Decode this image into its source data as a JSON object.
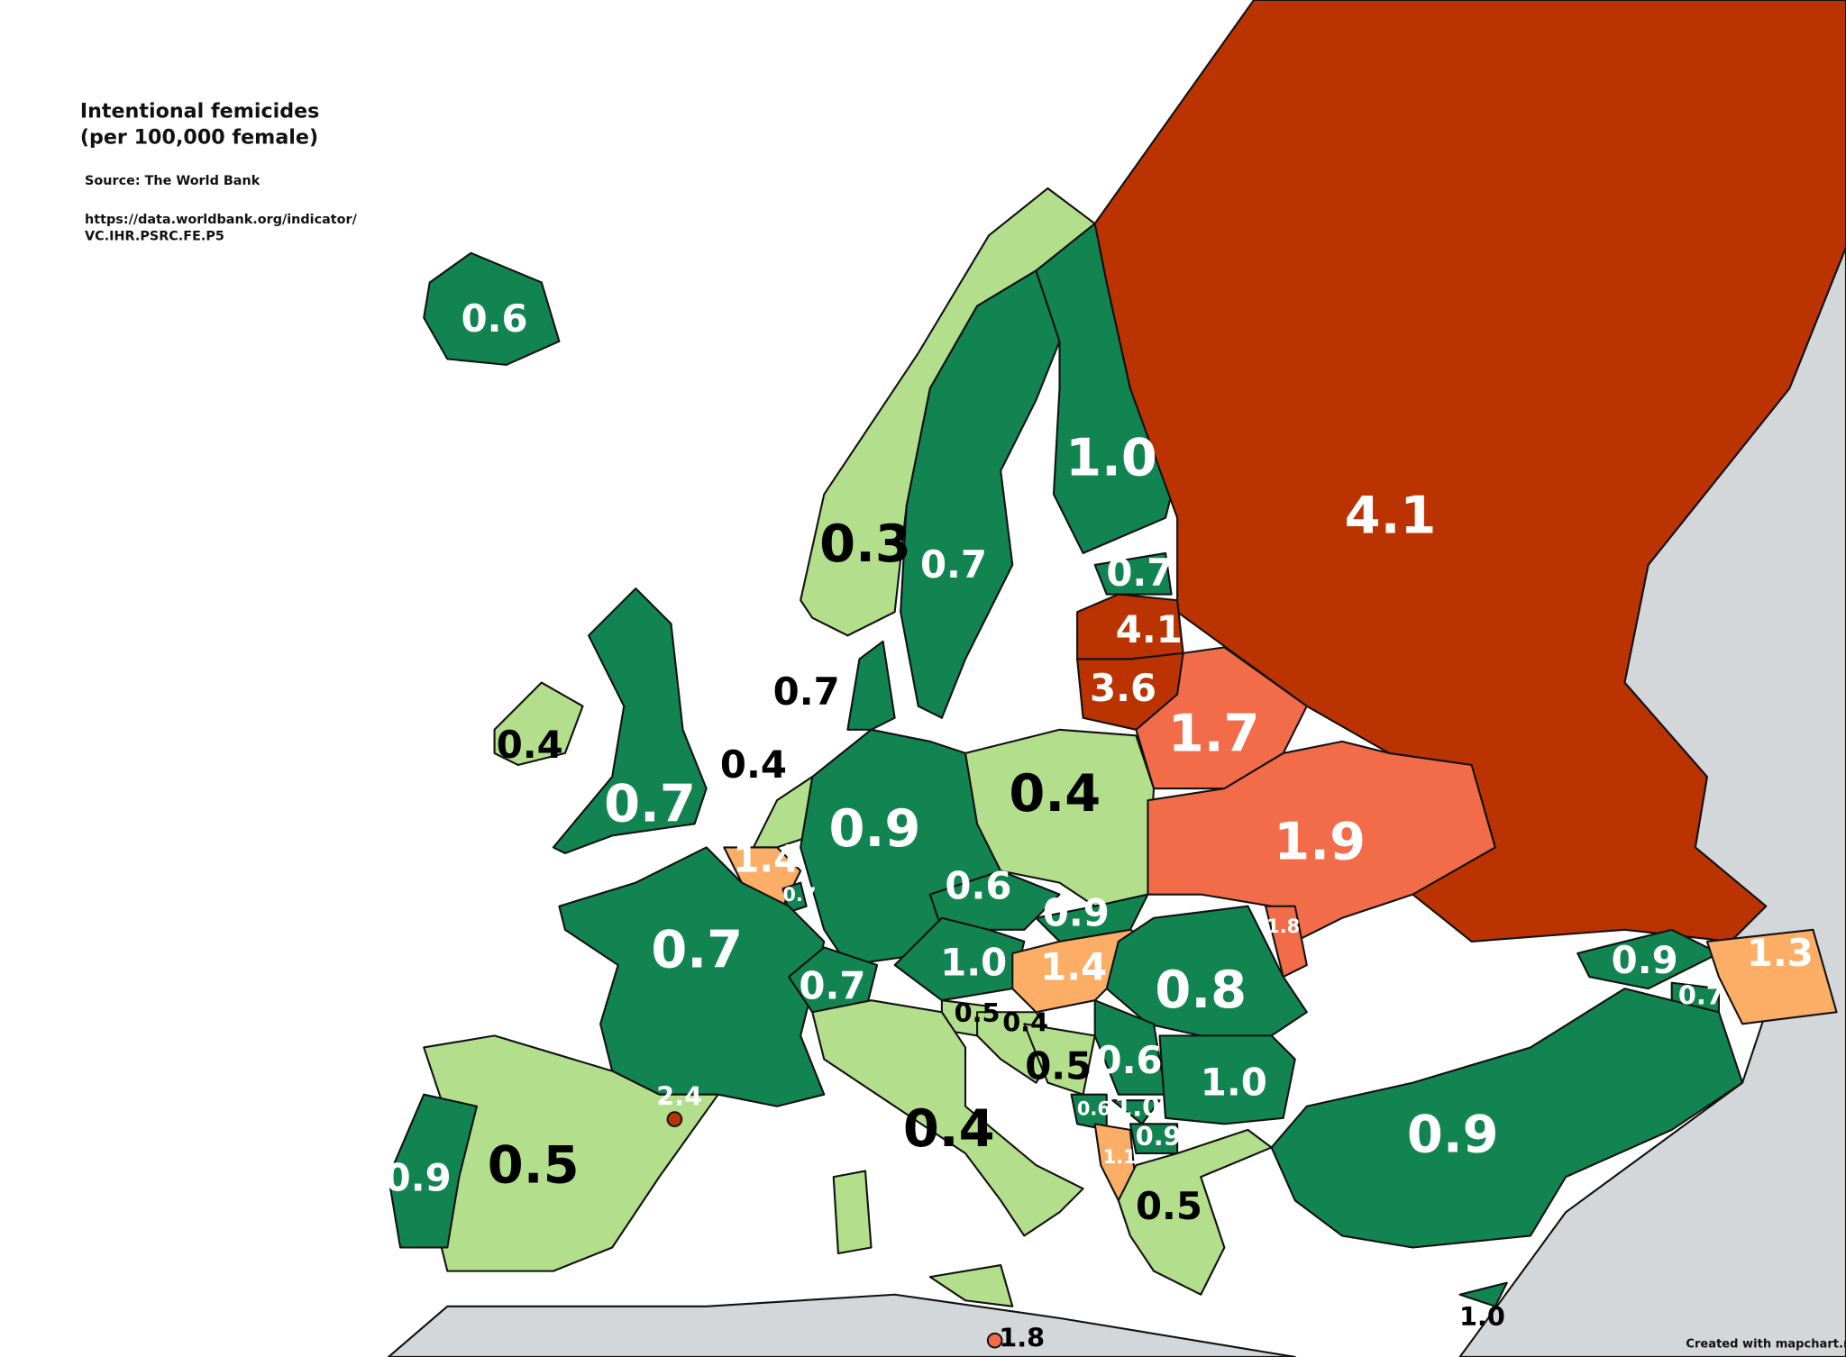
{
  "header": {
    "title": "Intentional femicides (per 100,000 female)",
    "source": "Source: The World Bank",
    "url": "https://data.worldbank.org/indicator/VC.IHR.PSRC.FE.P5"
  },
  "credit": "Created with mapchart.ne",
  "regions": [
    {
      "value": "0.6",
      "color": "#118452"
    },
    {
      "value": "0.3",
      "color": "#b3de8b"
    },
    {
      "value": "0.7",
      "color": "#118452"
    },
    {
      "value": "1.0",
      "color": "#118452"
    },
    {
      "value": "4.1",
      "color": "#bb3300"
    },
    {
      "value": "0.7",
      "color": "#118452"
    },
    {
      "value": "4.1",
      "color": "#bb3300"
    },
    {
      "value": "3.6",
      "color": "#bb3300"
    },
    {
      "value": "1.7",
      "color": "#f26c4a"
    },
    {
      "value": "0.7",
      "color": "#118452"
    },
    {
      "value": "0.4",
      "color": "#b3de8b"
    },
    {
      "value": "0.7",
      "color": "#118452"
    },
    {
      "value": "0.4",
      "color": "#b3de8b"
    },
    {
      "value": "0.9",
      "color": "#118452"
    },
    {
      "value": "0.4",
      "color": "#b3de8b"
    },
    {
      "value": "1.4",
      "color": "#fcad66"
    },
    {
      "value": "0.7",
      "color": "#118452"
    },
    {
      "value": "1.9",
      "color": "#f26c4a"
    },
    {
      "value": "0.6",
      "color": "#118452"
    },
    {
      "value": "0.9",
      "color": "#118452"
    },
    {
      "value": "1.8",
      "color": "#f26c4a"
    },
    {
      "value": "0.9",
      "color": "#118452"
    },
    {
      "value": "1.3",
      "color": "#fcad66"
    },
    {
      "value": "0.7",
      "color": "#118452"
    },
    {
      "value": "0.7",
      "color": "#118452"
    },
    {
      "value": "0.7",
      "color": "#118452"
    },
    {
      "value": "1.0",
      "color": "#118452"
    },
    {
      "value": "1.4",
      "color": "#fcad66"
    },
    {
      "value": "0.8",
      "color": "#118452"
    },
    {
      "value": "0.5",
      "color": "#b3de8b"
    },
    {
      "value": "0.4",
      "color": "#b3de8b"
    },
    {
      "value": "0.5",
      "color": "#b3de8b"
    },
    {
      "value": "0.6",
      "color": "#118452"
    },
    {
      "value": "1.0",
      "color": "#118452"
    },
    {
      "value": "0.6",
      "color": "#118452"
    },
    {
      "value": "1.0",
      "color": "#118452"
    },
    {
      "value": "0.9",
      "color": "#118452"
    },
    {
      "value": "1.1",
      "color": "#fcad66"
    },
    {
      "value": "2.4",
      "color": "#bb3300"
    },
    {
      "value": "0.5",
      "color": "#b3de8b"
    },
    {
      "value": "0.9",
      "color": "#118452"
    },
    {
      "value": "0.4",
      "color": "#b3de8b"
    },
    {
      "value": "0.5",
      "color": "#b3de8b"
    },
    {
      "value": "0.9",
      "color": "#118452"
    },
    {
      "value": "1.0",
      "color": "#118452"
    },
    {
      "value": "1.8",
      "color": "#f26c4a"
    }
  ]
}
